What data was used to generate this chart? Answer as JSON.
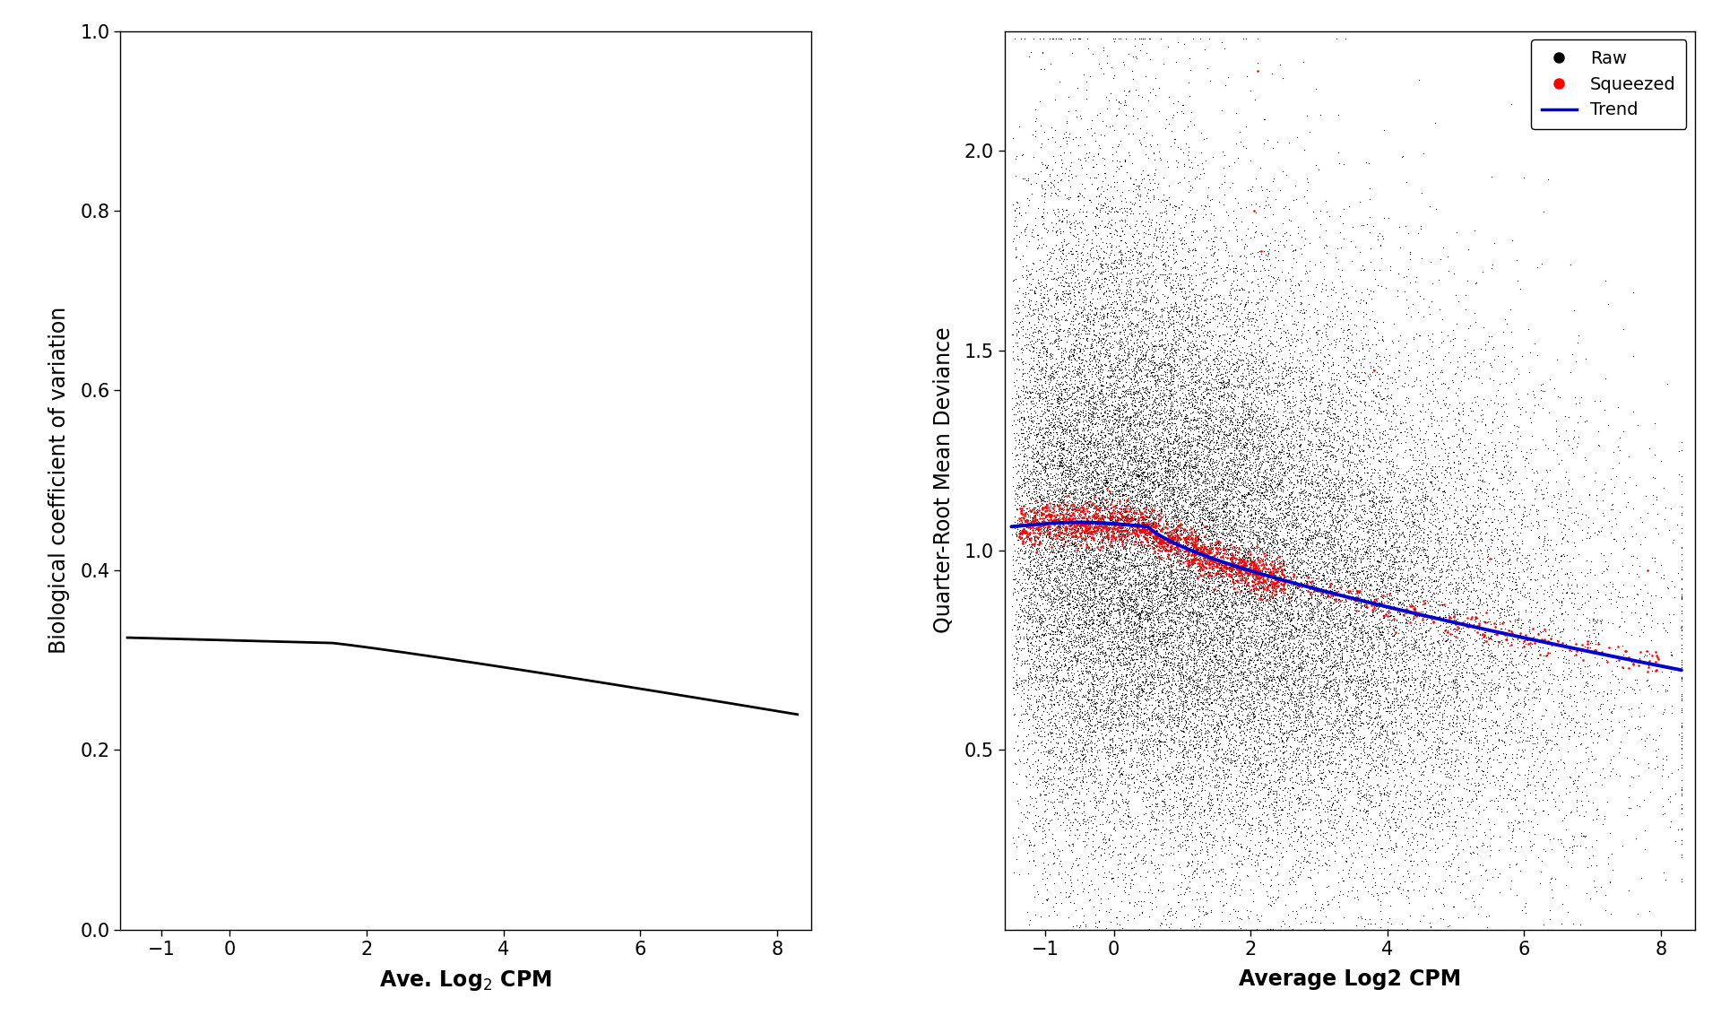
{
  "left_panel": {
    "xlabel": "Ave. Log$_2$ CPM",
    "ylabel": "Biological coefficient of variation",
    "xlim": [
      -1.6,
      8.5
    ],
    "ylim": [
      0.0,
      1.0
    ],
    "xticks": [
      -1,
      0,
      2,
      4,
      6,
      8
    ],
    "yticks": [
      0.0,
      0.2,
      0.4,
      0.6,
      0.8,
      1.0
    ],
    "trend_color": "#000000"
  },
  "right_panel": {
    "xlabel": "Average Log2 CPM",
    "ylabel": "Quarter-Root Mean Deviance",
    "xlim": [
      -1.6,
      8.5
    ],
    "ylim": [
      0.05,
      2.3
    ],
    "xticks": [
      -1,
      0,
      2,
      4,
      6,
      8
    ],
    "yticks": [
      0.5,
      1.0,
      1.5,
      2.0
    ],
    "scatter_color_raw": "#000000",
    "scatter_color_squeezed": "#ff0000",
    "trend_color": "#0000cc",
    "legend_labels": [
      "Raw",
      "Squeezed",
      "Trend"
    ],
    "legend_colors": [
      "#000000",
      "#ff0000",
      "#0000cc"
    ]
  },
  "figure_bg": "#ffffff",
  "tick_labelsize": 15,
  "axis_labelsize": 17,
  "seed": 42
}
